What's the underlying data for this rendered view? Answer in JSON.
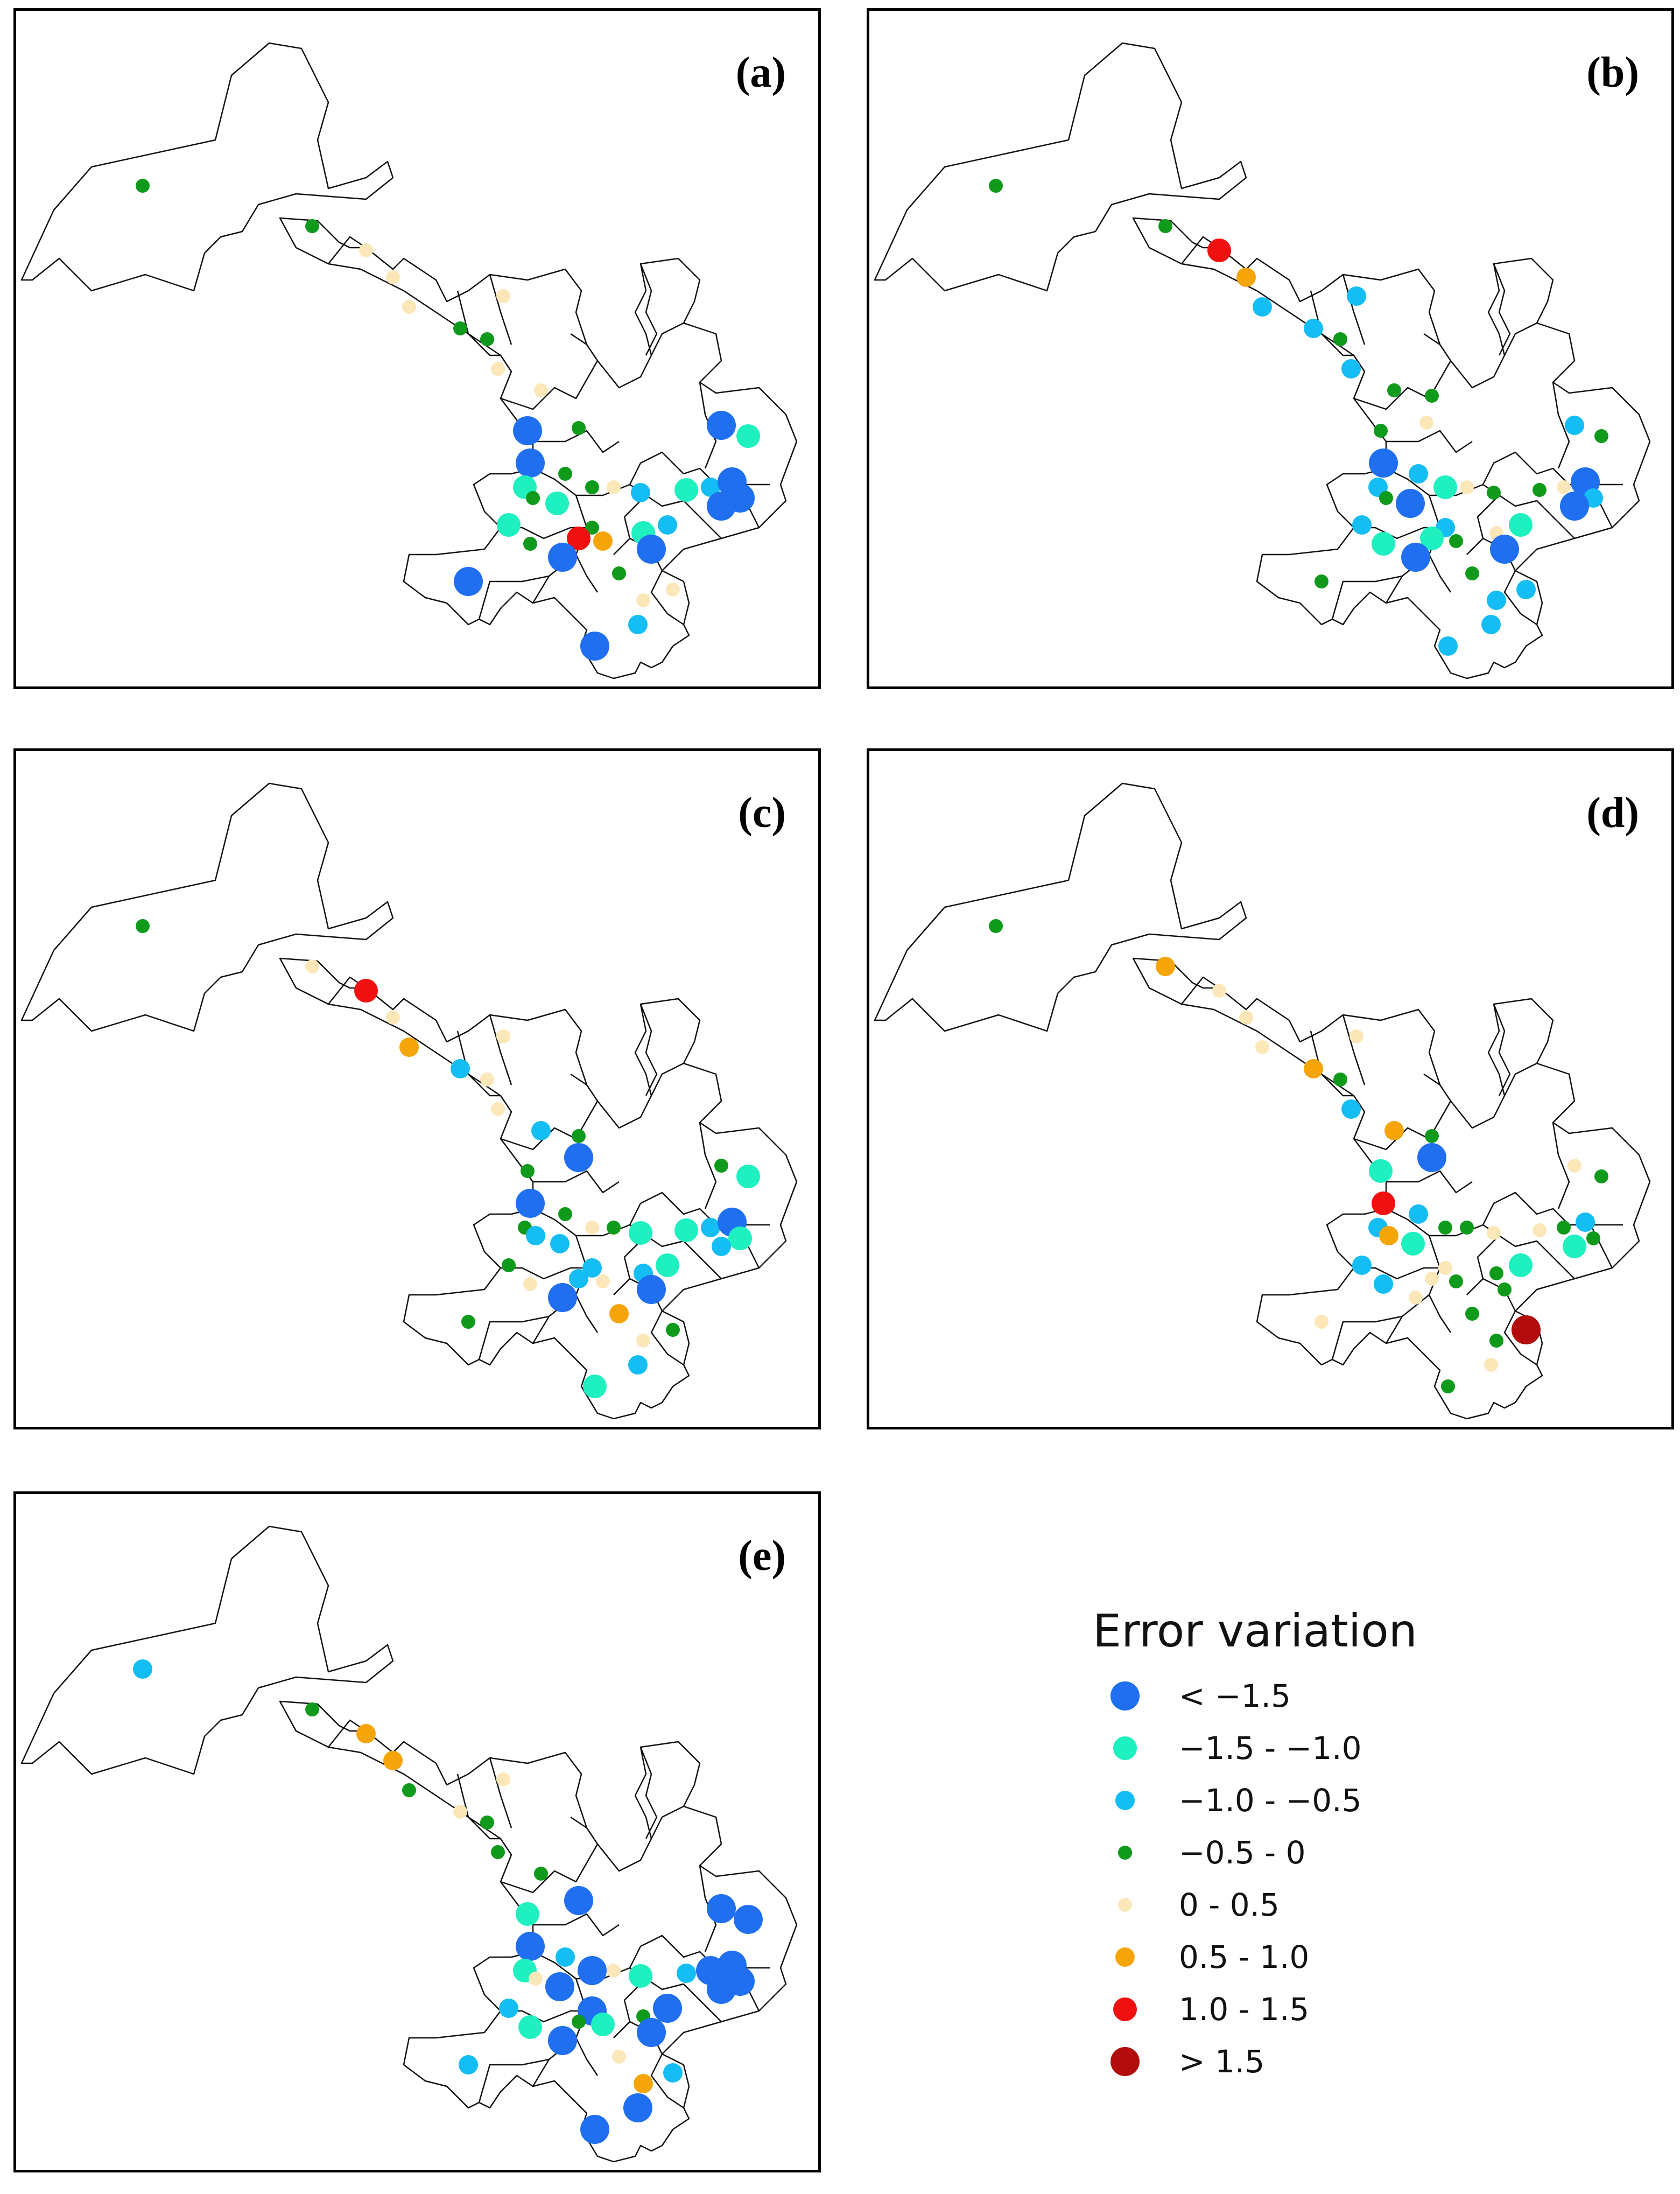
{
  "panels": [
    {
      "id": "a",
      "label": "(a)"
    },
    {
      "id": "b",
      "label": "(b)"
    },
    {
      "id": "c",
      "label": "(c)"
    },
    {
      "id": "d",
      "label": "(d)"
    },
    {
      "id": "e",
      "label": "(e)"
    }
  ],
  "legend": {
    "title": "Error variation",
    "classes": [
      {
        "key": "c1",
        "label": "< −1.5",
        "color": "#1f6ff0"
      },
      {
        "key": "c2",
        "label": "−1.5 - −1.0",
        "color": "#1ef0c0"
      },
      {
        "key": "c3",
        "label": "−1.0 - −0.5",
        "color": "#14bdf4"
      },
      {
        "key": "c4",
        "label": "−0.5 - 0",
        "color": "#0f9a1c"
      },
      {
        "key": "c5",
        "label": "0 - 0.5",
        "color": "#fce7b8"
      },
      {
        "key": "c6",
        "label": "0.5 - 1.0",
        "color": "#f5a50a"
      },
      {
        "key": "c7",
        "label": "1.0 - 1.5",
        "color": "#f01010"
      },
      {
        "key": "c8",
        "label": "> 1.5",
        "color": "#b20c0c"
      }
    ]
  }
}
